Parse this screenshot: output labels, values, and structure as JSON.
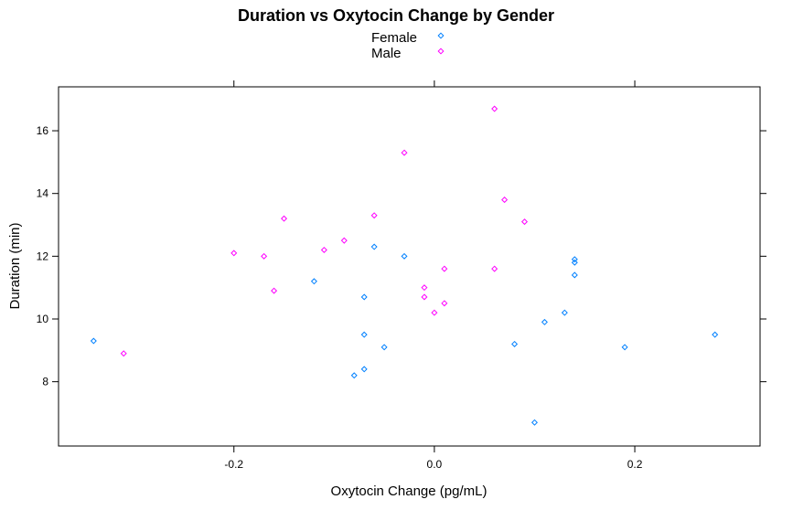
{
  "chart_data": {
    "type": "scatter",
    "title": "Duration vs Oxytocin Change by Gender",
    "xlabel": "Oxytocin Change (pg/mL)",
    "ylabel": "Duration (min)",
    "xlim": [
      -0.375,
      0.325
    ],
    "ylim": [
      5.95,
      17.4
    ],
    "xticks": [
      -0.2,
      0.0,
      0.2
    ],
    "xtick_labels": [
      "-0.2",
      "0.0",
      "0.2"
    ],
    "yticks": [
      8,
      10,
      12,
      14,
      16
    ],
    "ytick_labels": [
      "8",
      "10",
      "12",
      "14",
      "16"
    ],
    "grid": false,
    "legend_position": "top-center",
    "series": [
      {
        "name": "Female",
        "color": "#0080ff",
        "marker": "open-diamond",
        "points": [
          {
            "x": -0.34,
            "y": 9.3
          },
          {
            "x": -0.12,
            "y": 11.2
          },
          {
            "x": -0.08,
            "y": 8.2
          },
          {
            "x": -0.07,
            "y": 10.7
          },
          {
            "x": -0.07,
            "y": 9.5
          },
          {
            "x": -0.07,
            "y": 8.4
          },
          {
            "x": -0.06,
            "y": 12.3
          },
          {
            "x": -0.05,
            "y": 9.1
          },
          {
            "x": -0.03,
            "y": 12.0
          },
          {
            "x": 0.08,
            "y": 9.2
          },
          {
            "x": 0.1,
            "y": 6.7
          },
          {
            "x": 0.11,
            "y": 9.9
          },
          {
            "x": 0.13,
            "y": 10.2
          },
          {
            "x": 0.14,
            "y": 11.9
          },
          {
            "x": 0.14,
            "y": 11.8
          },
          {
            "x": 0.14,
            "y": 11.4
          },
          {
            "x": 0.19,
            "y": 9.1
          },
          {
            "x": 0.28,
            "y": 9.5
          }
        ]
      },
      {
        "name": "Male",
        "color": "#ff00ff",
        "marker": "open-diamond",
        "points": [
          {
            "x": -0.31,
            "y": 8.9
          },
          {
            "x": -0.2,
            "y": 12.1
          },
          {
            "x": -0.17,
            "y": 12.0
          },
          {
            "x": -0.16,
            "y": 10.9
          },
          {
            "x": -0.15,
            "y": 13.2
          },
          {
            "x": -0.11,
            "y": 12.2
          },
          {
            "x": -0.09,
            "y": 12.5
          },
          {
            "x": -0.06,
            "y": 13.3
          },
          {
            "x": -0.03,
            "y": 15.3
          },
          {
            "x": -0.01,
            "y": 11.0
          },
          {
            "x": -0.01,
            "y": 10.7
          },
          {
            "x": 0.0,
            "y": 10.2
          },
          {
            "x": 0.01,
            "y": 11.6
          },
          {
            "x": 0.01,
            "y": 10.5
          },
          {
            "x": 0.06,
            "y": 16.7
          },
          {
            "x": 0.06,
            "y": 11.6
          },
          {
            "x": 0.07,
            "y": 13.8
          },
          {
            "x": 0.09,
            "y": 13.1
          }
        ]
      }
    ]
  }
}
